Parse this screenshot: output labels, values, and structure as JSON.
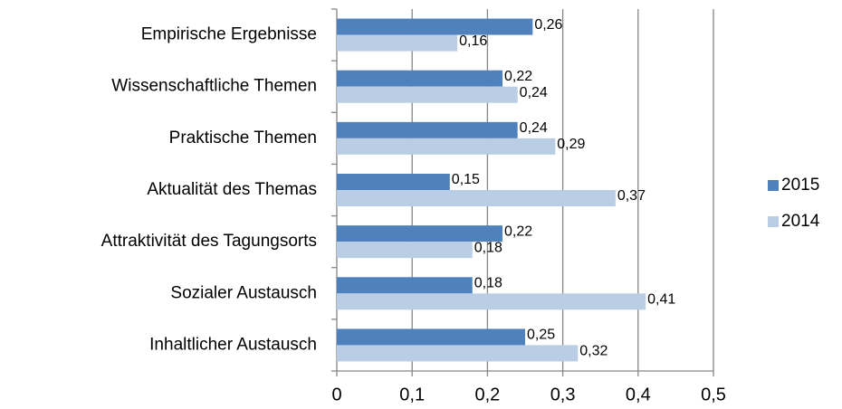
{
  "chart_data": {
    "type": "barh",
    "categories": [
      "Empirische Ergebnisse",
      "Wissenschaftliche Themen",
      "Praktische Themen",
      "Aktualität des Themas",
      "Attraktivität des Tagungsorts",
      "Sozialer Austausch",
      "Inhaltlicher Austausch"
    ],
    "series": [
      {
        "name": "2015",
        "color": "#4f81bd",
        "values": [
          0.26,
          0.22,
          0.24,
          0.15,
          0.22,
          0.18,
          0.25
        ],
        "value_labels": [
          "0,26",
          "0,22",
          "0,24",
          "0,15",
          "0,22",
          "0,18",
          "0,25"
        ]
      },
      {
        "name": "2014",
        "color": "#b9cde5",
        "values": [
          0.16,
          0.24,
          0.29,
          0.37,
          0.18,
          0.41,
          0.32
        ],
        "value_labels": [
          "0,16",
          "0,24",
          "0,29",
          "0,37",
          "0,18",
          "0,41",
          "0,32"
        ]
      }
    ],
    "xlim": [
      0,
      0.5
    ],
    "xticks": [
      0,
      {
        "value": 0.1,
        "label": "0,1"
      },
      {
        "value": 0.2,
        "label": "0,2"
      },
      {
        "value": 0.3,
        "label": "0,3"
      },
      {
        "value": 0.4,
        "label": "0,4"
      },
      {
        "value": 0.5,
        "label": "0,5"
      }
    ],
    "grid": true,
    "legend": "right"
  }
}
